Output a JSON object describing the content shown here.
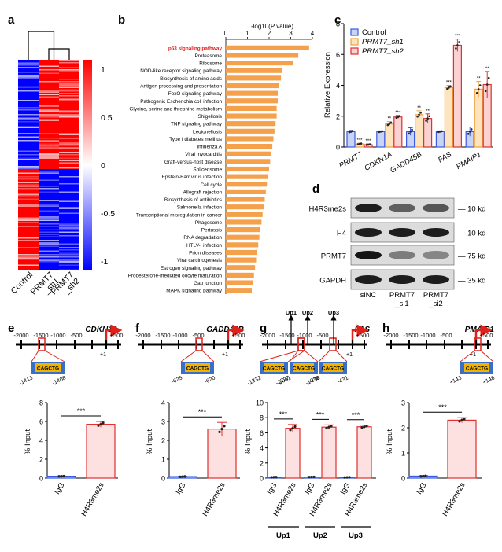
{
  "panels": {
    "a": "a",
    "b": "b",
    "c": "c",
    "d": "d",
    "e": "e",
    "f": "f",
    "g": "g",
    "h": "h"
  },
  "colors": {
    "orange_bar": "#F5A04A",
    "red_title": "#E0201B",
    "heat_red": "#FF0000",
    "heat_blue": "#0000FF",
    "control_fill": "#C9D3F5",
    "control_edge": "#3A5AE0",
    "sh1_fill": "#FDE3BE",
    "sh1_edge": "#F0A040",
    "sh2_fill": "#FBD2D2",
    "sh2_edge": "#E03030",
    "igg_fill": "#C9D3F5",
    "h4_fill": "#FDE0E0",
    "h4_edge": "#E03030",
    "motif_box": "#F0B400",
    "motif_flank": "#3A6FC8",
    "promoter_red": "#E0201B"
  },
  "chart_data": [
    {
      "panel": "a",
      "type": "heatmap",
      "columns": [
        "Control",
        "PRMT7_sh1",
        "PRMT7_sh2"
      ],
      "column_labels": [
        [
          "Control"
        ],
        [
          "PRMT7",
          "_sh1"
        ],
        [
          "PRMT7",
          "_sh2"
        ]
      ],
      "colorbar_ticks": [
        "1",
        "0.5",
        "0",
        "-0.5",
        "-1"
      ],
      "colorbar_values": [
        1,
        0.5,
        0,
        -0.5,
        -1
      ],
      "upper_block": {
        "Control": "blue",
        "PRMT7_sh1": "red",
        "PRMT7_sh2": "red"
      },
      "lower_block": {
        "Control": "red",
        "PRMT7_sh1": "blue",
        "PRMT7_sh2": "blue"
      }
    },
    {
      "panel": "b",
      "type": "bar",
      "orientation": "horizontal",
      "xlabel": "-log10(P value)",
      "xlim": [
        0,
        4
      ],
      "xticks": [
        0,
        1,
        2,
        3,
        4
      ],
      "highlight": "p53 signaling pathway",
      "categories": [
        "p53 signaling pathway",
        "Proteasome",
        "Ribosome",
        "NOD-like receptor signaling pathway",
        "Biosynthesis of amino acids",
        "Antigen processing and presentation",
        "FoxO signaling pathway",
        "Pathogenic Escherichia coli infection",
        "Glycine, serine and threonine metabolism",
        "Shigellosis",
        "TNF signaling pathway",
        "Legionellosis",
        "Type I diabetes mellitus",
        "Influenza A",
        "Viral myocarditis",
        "Graft-versus-host disease",
        "Spliceosome",
        "Epstein-Barr virus infection",
        "Cell cycle",
        "Allograft rejection",
        "Biosynthesis of antibiotics",
        "Salmonella infection",
        "Transcriptional misregulation in cancer",
        "Phagosome",
        "Pertussis",
        "RNA degradation",
        "HTLV-I infection",
        "Prion diseases",
        "Viral carcinogenesis",
        "Estrogen signaling pathway",
        "Progesterone-mediated oocyte maturation",
        "Gap junction",
        "MAPK signaling pathway"
      ],
      "values": [
        3.85,
        3.35,
        3.1,
        2.6,
        2.55,
        2.45,
        2.4,
        2.4,
        2.35,
        2.35,
        2.3,
        2.25,
        2.2,
        2.15,
        2.1,
        2.05,
        2.0,
        1.95,
        1.9,
        1.85,
        1.8,
        1.75,
        1.7,
        1.65,
        1.6,
        1.55,
        1.5,
        1.45,
        1.4,
        1.35,
        1.3,
        1.25,
        1.2
      ]
    },
    {
      "panel": "c",
      "type": "bar",
      "ylabel": "Relative Expression",
      "ylim": [
        0,
        8
      ],
      "yticks": [
        0,
        2,
        4,
        6,
        8
      ],
      "categories": [
        "PRMT7",
        "CDKN1A",
        "GADD45B",
        "FAS",
        "PMAIP1"
      ],
      "legend": [
        "Control",
        "PRMT7_sh1",
        "PRMT7_sh2"
      ],
      "legend_position": "top-left",
      "series": [
        {
          "name": "Control",
          "values": [
            1.0,
            1.0,
            1.0,
            1.0,
            1.0
          ],
          "errors": [
            0.08,
            0.05,
            0.25,
            0.05,
            0.3
          ],
          "stars": [
            "",
            "",
            "",
            "",
            ""
          ]
        },
        {
          "name": "PRMT7_sh1",
          "values": [
            0.2,
            1.5,
            2.1,
            3.85,
            3.75
          ],
          "errors": [
            0.05,
            0.15,
            0.25,
            0.15,
            0.5
          ],
          "stars": [
            "***",
            "**",
            "**",
            "***",
            "**"
          ]
        },
        {
          "name": "PRMT7_sh2",
          "values": [
            0.15,
            1.95,
            1.85,
            6.6,
            4.05
          ],
          "errors": [
            0.05,
            0.1,
            0.3,
            0.4,
            0.85
          ],
          "stars": [
            "***",
            "***",
            "**",
            "***",
            "**"
          ]
        }
      ]
    },
    {
      "panel": "d",
      "type": "table",
      "rows": [
        {
          "label": "H4R3me2s",
          "size": "10 kd"
        },
        {
          "label": "H4",
          "size": "10 kd"
        },
        {
          "label": "PRMT7",
          "size": "75 kd"
        },
        {
          "label": "GAPDH",
          "size": "35 kd"
        }
      ],
      "lanes": [
        [
          "siNC"
        ],
        [
          "PRMT7",
          "_si1"
        ],
        [
          "PRMT7",
          "_si2"
        ]
      ],
      "band_intensity": [
        [
          0.9,
          0.55,
          0.6
        ],
        [
          0.9,
          0.9,
          0.9
        ],
        [
          0.95,
          0.4,
          0.35
        ],
        [
          0.9,
          0.9,
          0.9
        ]
      ]
    },
    {
      "panel": "e",
      "type": "bar",
      "gene": "CDKN1A",
      "promoter_ticks": [
        "-2000",
        "-1500",
        "-1000",
        "-500"
      ],
      "tss_labels": [
        "+1",
        "+500"
      ],
      "motif": "CAGCTG",
      "motif_coords": [
        "-1413",
        "-1408"
      ],
      "ylabel": "% Input",
      "ylim": [
        0,
        8
      ],
      "yticks": [
        0,
        2,
        4,
        6,
        8
      ],
      "categories": [
        "IgG",
        "H4R3me2s"
      ],
      "values": [
        0.2,
        5.7
      ],
      "errors": [
        0.02,
        0.3
      ],
      "significance": "***"
    },
    {
      "panel": "f",
      "type": "bar",
      "gene": "GADD45B",
      "promoter_ticks": [
        "-2000",
        "-1500",
        "-1000",
        "-500"
      ],
      "tss_labels": [
        "+1",
        "+500"
      ],
      "motif": "CAGCTG",
      "motif_coords": [
        "-625",
        "-620"
      ],
      "ylabel": "% Input",
      "ylim": [
        0,
        4
      ],
      "yticks": [
        0,
        1,
        2,
        3,
        4
      ],
      "categories": [
        "IgG",
        "H4R3me2s"
      ],
      "values": [
        0.08,
        2.6
      ],
      "errors": [
        0.02,
        0.35
      ],
      "significance": "***"
    },
    {
      "panel": "g",
      "type": "bar",
      "gene": "FAS",
      "promoter_ticks": [
        "-2000",
        "-1500",
        "-1000",
        "-500"
      ],
      "tss_labels": [
        "+1",
        "+500"
      ],
      "primers": [
        "Up1",
        "Up2",
        "Up3"
      ],
      "motif": "CAGCTG",
      "motif_coords": [
        "-1332",
        "-1327",
        "-1041",
        "-1036",
        "-436",
        "-431"
      ],
      "ylabel": "% Input",
      "ylim": [
        0,
        10
      ],
      "yticks": [
        0,
        2,
        4,
        6,
        8,
        10
      ],
      "groups": [
        "Up1",
        "Up2",
        "Up3"
      ],
      "categories": [
        "IgG",
        "H4R3me2s",
        "IgG",
        "H4R3me2s",
        "IgG",
        "H4R3me2s"
      ],
      "values": [
        0.12,
        6.6,
        0.15,
        6.75,
        0.1,
        6.8
      ],
      "errors": [
        0.03,
        0.5,
        0.03,
        0.3,
        0.03,
        0.2
      ],
      "significance": [
        "***",
        "***",
        "***"
      ]
    },
    {
      "panel": "h",
      "type": "bar",
      "gene": "PMAIP1",
      "promoter_ticks": [
        "-2000",
        "-1500",
        "-1000",
        "-500"
      ],
      "tss_labels": [
        "+1",
        "+500"
      ],
      "motif": "CAGCTG",
      "motif_coords": [
        "+143",
        "+148"
      ],
      "ylabel": "% Input",
      "ylim": [
        0,
        3
      ],
      "yticks": [
        0,
        1,
        2,
        3
      ],
      "categories": [
        "IgG",
        "H4R3me2s"
      ],
      "values": [
        0.08,
        2.3
      ],
      "errors": [
        0.02,
        0.1
      ],
      "significance": "***"
    }
  ]
}
